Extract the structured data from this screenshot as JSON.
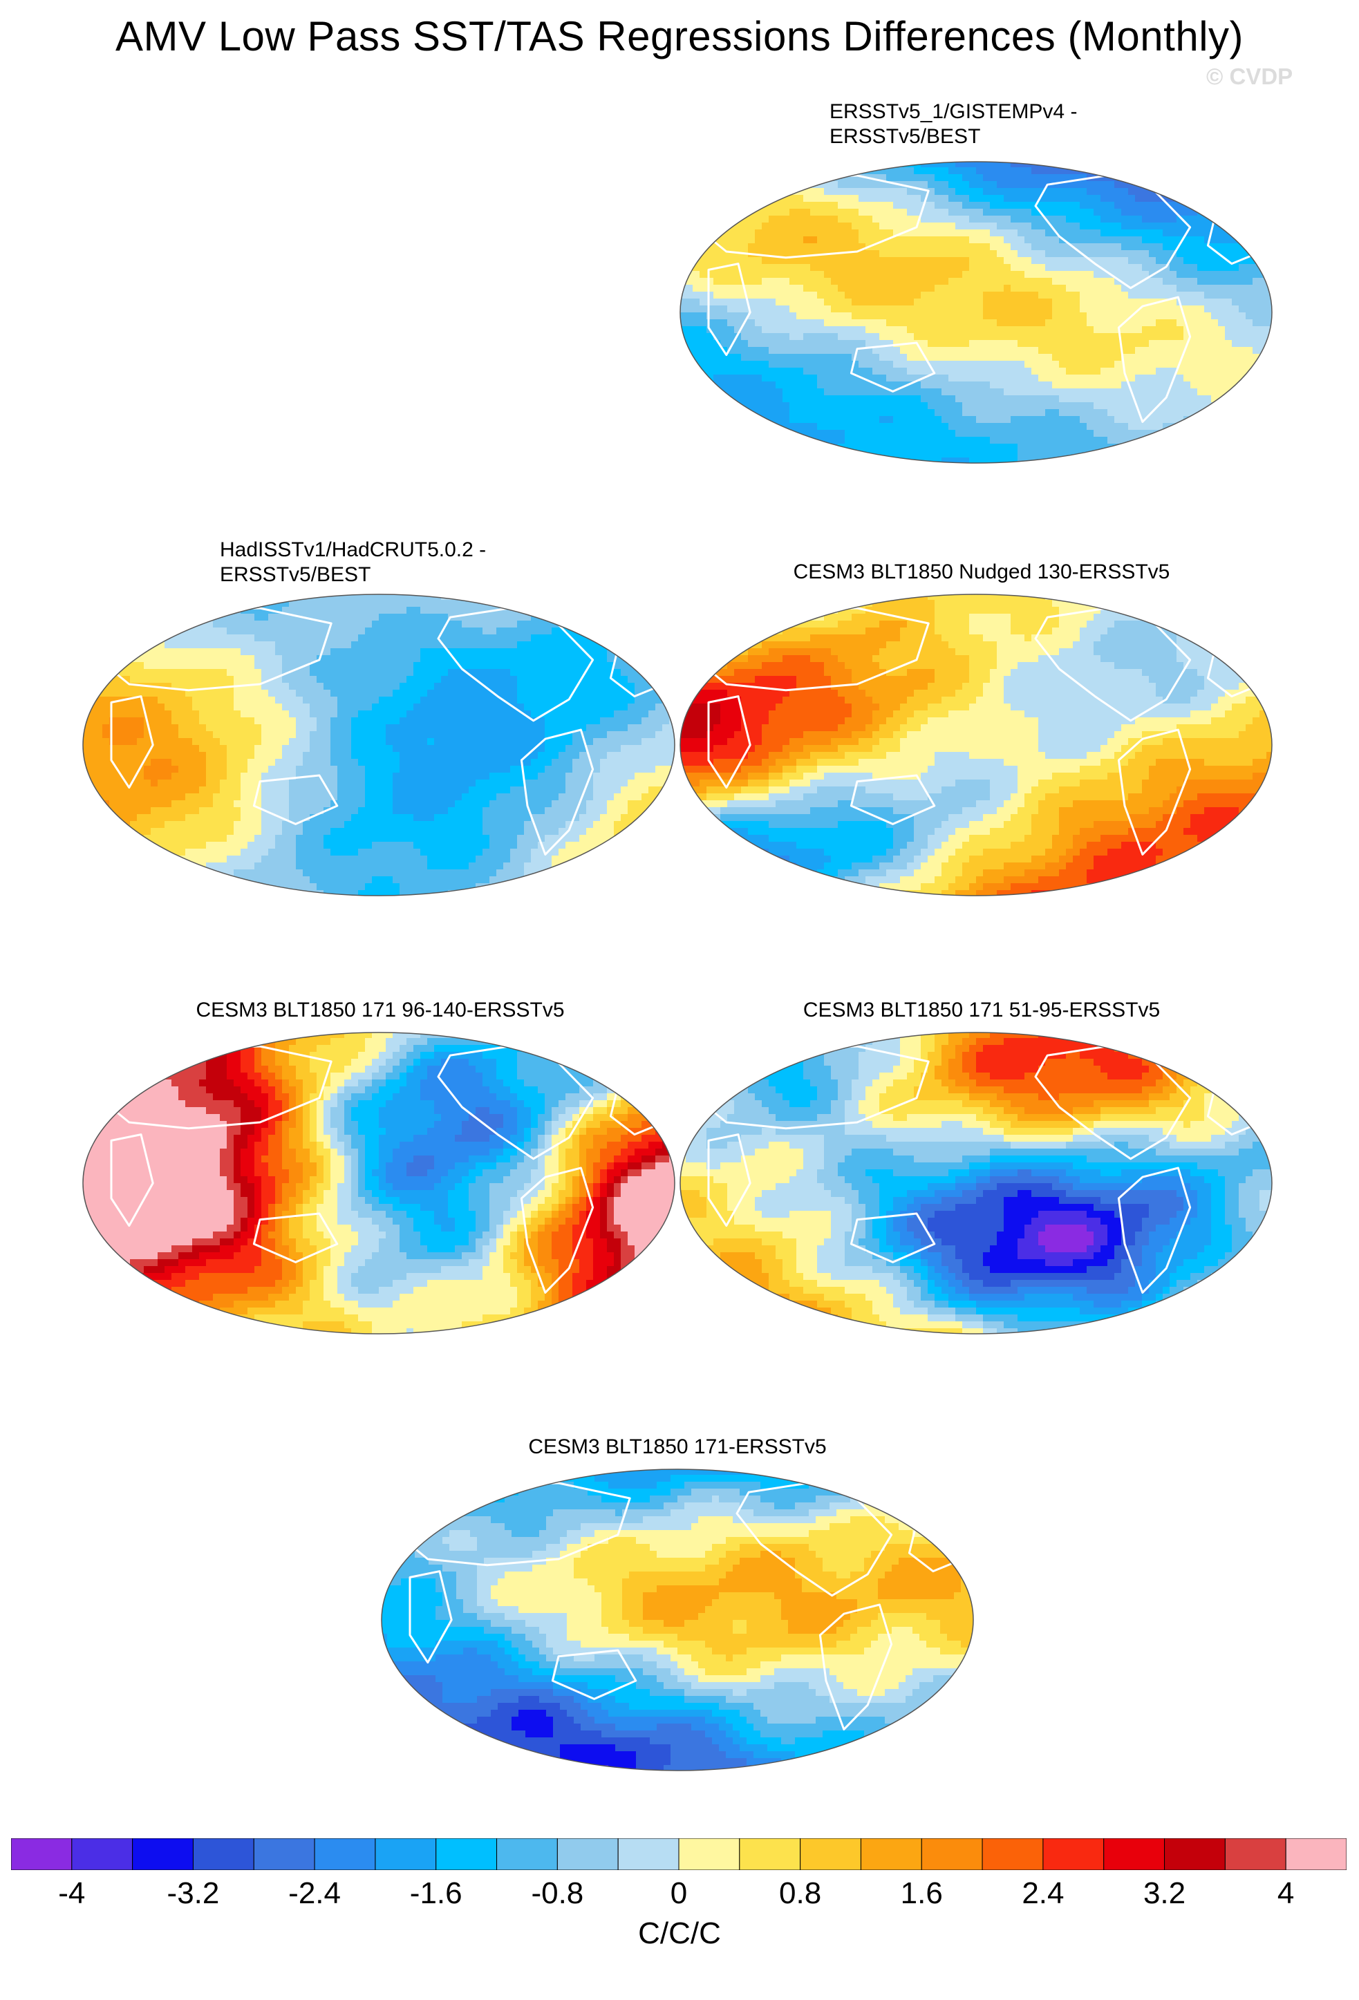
{
  "title": "AMV Low Pass SST/TAS Regressions Differences (Monthly)",
  "watermark": "© CVDP",
  "panels": [
    {
      "title_line1": "ERSSTv5_1/GISTEMPv4 -",
      "title_line2": "ERSSTv5/BEST",
      "seed": 11,
      "scale": 0.55
    },
    {
      "title_line1": "HadISSTv1/HadCRUT5.0.2 -",
      "title_line2": "ERSSTv5/BEST",
      "seed": 23,
      "scale": 0.5
    },
    {
      "title_line1": "CESM3 BLT1850 Nudged 130-ERSSTv5",
      "title_line2": "",
      "seed": 37,
      "scale": 0.7
    },
    {
      "title_line1": "CESM3 BLT1850 171 96-140-ERSSTv5",
      "title_line2": "",
      "seed": 53,
      "scale": 1.1
    },
    {
      "title_line1": "CESM3 BLT1850 171 51-95-ERSSTv5",
      "title_line2": "",
      "seed": 71,
      "scale": 1.0
    },
    {
      "title_line1": "CESM3 BLT1850 171-ERSSTv5",
      "title_line2": "",
      "seed": 89,
      "scale": 0.9
    }
  ],
  "colorbar": {
    "min": -4.4,
    "max": 4.4,
    "step": 0.4,
    "colors": [
      "#8a2be2",
      "#4b2ee6",
      "#0d0df0",
      "#2d55d8",
      "#3b76e0",
      "#2b8cf0",
      "#1aa3f5",
      "#00bfff",
      "#4db8ee",
      "#91cbed",
      "#b7ddf3",
      "#fff7a0",
      "#fde24d",
      "#fdc82a",
      "#fca612",
      "#fb8c0c",
      "#fb6208",
      "#f92910",
      "#e8000b",
      "#c4000a",
      "#d94040",
      "#fbb5be"
    ],
    "tick_labels": [
      "-4",
      "-3.2",
      "-2.4",
      "-1.6",
      "-0.8",
      "0",
      "0.8",
      "1.6",
      "2.4",
      "3.2",
      "4"
    ],
    "tick_values": [
      -4,
      -3.2,
      -2.4,
      -1.6,
      -0.8,
      0,
      0.8,
      1.6,
      2.4,
      3.2,
      4
    ],
    "units": "C/C/C"
  }
}
